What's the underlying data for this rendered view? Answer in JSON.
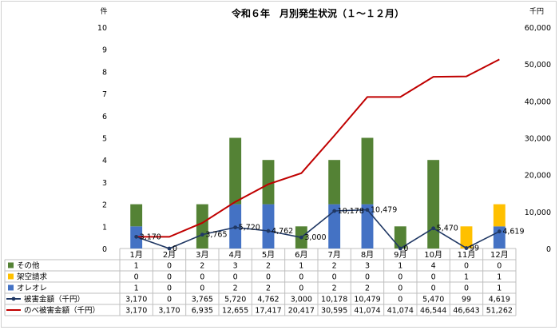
{
  "chart_data": {
    "type": "bar",
    "title": "令和６年　月別発生状況（１～１２月）",
    "left_axis_unit": "件",
    "right_axis_unit": "千円",
    "left_ylim": [
      0,
      10
    ],
    "right_ylim": [
      0,
      60000
    ],
    "left_ticks": [
      "0",
      "1",
      "2",
      "3",
      "4",
      "5",
      "6",
      "7",
      "8",
      "9",
      "10"
    ],
    "right_ticks": [
      "0",
      "10,000",
      "20,000",
      "30,000",
      "40,000",
      "50,000",
      "60,000"
    ],
    "grid": false,
    "legend": "table-bottom",
    "categories": [
      "1月",
      "2月",
      "3月",
      "4月",
      "5月",
      "6月",
      "7月",
      "8月",
      "9月",
      "10月",
      "11月",
      "12月"
    ],
    "bar_series": [
      {
        "name": "オレオレ",
        "color": "#4472c4",
        "values": [
          1,
          0,
          0,
          2,
          2,
          0,
          2,
          2,
          0,
          0,
          0,
          1
        ]
      },
      {
        "name": "架空請求",
        "color": "#ffc000",
        "values": [
          0,
          0,
          0,
          0,
          0,
          0,
          0,
          0,
          0,
          0,
          1,
          1
        ]
      },
      {
        "name": "その他",
        "color": "#548235",
        "values": [
          1,
          0,
          2,
          3,
          2,
          1,
          2,
          3,
          1,
          4,
          0,
          0
        ]
      }
    ],
    "line_series": [
      {
        "name": "被害金額（千円）",
        "color": "#203864",
        "values": [
          3170,
          0,
          3765,
          5720,
          4762,
          3000,
          10178,
          10479,
          0,
          5470,
          99,
          4619
        ],
        "labels": [
          "3,170",
          "0",
          "3,765",
          "5,720",
          "4,762",
          "3,000",
          "10,178",
          "10,479",
          "0",
          "5,470",
          "99",
          "4,619"
        ],
        "table": [
          "3,170",
          "0",
          "3,765",
          "5,720",
          "4,762",
          "3,000",
          "10,178",
          "10,479",
          "0",
          "5,470",
          "99",
          "4,619"
        ]
      },
      {
        "name": "のべ被害金額（千円）",
        "color": "#c00000",
        "values": [
          3170,
          3170,
          6935,
          12655,
          17417,
          20417,
          30595,
          41074,
          41074,
          46544,
          46643,
          51262
        ],
        "table": [
          "3,170",
          "3,170",
          "6,935",
          "12,655",
          "17,417",
          "20,417",
          "30,595",
          "41,074",
          "41,074",
          "46,544",
          "46,643",
          "51,262"
        ]
      }
    ],
    "table_rows": [
      {
        "name": "その他",
        "marker": "box",
        "color": "#548235",
        "cells": [
          "1",
          "0",
          "2",
          "3",
          "2",
          "1",
          "2",
          "3",
          "1",
          "4",
          "0",
          "0"
        ]
      },
      {
        "name": "架空請求",
        "marker": "box",
        "color": "#ffc000",
        "cells": [
          "0",
          "0",
          "0",
          "0",
          "0",
          "0",
          "0",
          "0",
          "0",
          "0",
          "1",
          "1"
        ]
      },
      {
        "name": "オレオレ",
        "marker": "box",
        "color": "#4472c4",
        "cells": [
          "1",
          "0",
          "0",
          "2",
          "2",
          "0",
          "2",
          "2",
          "0",
          "0",
          "0",
          "1"
        ]
      },
      {
        "name": "被害金額（千円）",
        "marker": "line-dot",
        "color": "#203864",
        "cells": [
          "3,170",
          "0",
          "3,765",
          "5,720",
          "4,762",
          "3,000",
          "10,178",
          "10,479",
          "0",
          "5,470",
          "99",
          "4,619"
        ]
      },
      {
        "name": "のべ被害金額（千円）",
        "marker": "line",
        "color": "#c00000",
        "cells": [
          "3,170",
          "3,170",
          "6,935",
          "12,655",
          "17,417",
          "20,417",
          "30,595",
          "41,074",
          "41,074",
          "46,544",
          "46,643",
          "51,262"
        ]
      }
    ]
  }
}
